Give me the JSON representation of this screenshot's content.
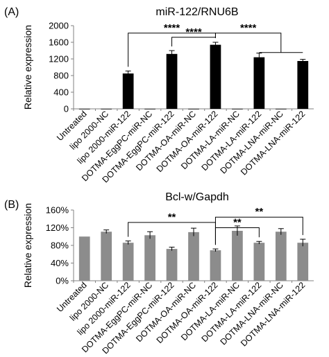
{
  "chart_data": [
    {
      "type": "bar",
      "panel_label": "(A)",
      "title": "miR-122/RNU6B",
      "ylabel": "Relative expression",
      "xlabel": "",
      "ylim": [
        0,
        2000
      ],
      "yticks": [
        "0",
        "400",
        "800",
        "1200",
        "1600",
        "2000"
      ],
      "ytick_values": [
        0,
        400,
        800,
        1200,
        1600,
        2000
      ],
      "grid": false,
      "bar_color": "#000000",
      "categories": [
        "Untreated",
        "lipo 2000-NC",
        "lipo 2000-miR-122",
        "DOTMA-EggPC-miR-NC",
        "DOTMA-EggPC-miR-122",
        "DOTMA-OA-miR-NC",
        "DOTMA-OA-miR-122",
        "DOTMA-LA-miR-NC",
        "DOTMA-LA-miR-122",
        "DOTMA-LNA-miR-NC",
        "DOTMA-LNA-miR-122"
      ],
      "values": [
        1,
        1,
        850,
        1,
        1320,
        1,
        1540,
        1,
        1240,
        1,
        1150
      ],
      "errors": [
        0,
        0,
        60,
        0,
        80,
        0,
        60,
        0,
        100,
        0,
        40
      ],
      "annotations": [
        {
          "text": "****",
          "from": 2,
          "to": 6,
          "level": 1820
        },
        {
          "text": "****",
          "from": 4,
          "to": 6,
          "level": 1720
        },
        {
          "text": "****",
          "from": 6,
          "to": [
            8,
            10
          ],
          "level": 1820
        }
      ]
    },
    {
      "type": "bar",
      "panel_label": "(B)",
      "title": "Bcl-w/Gapdh",
      "ylabel": "Relative expression",
      "xlabel": "",
      "ylim": [
        0,
        1.6
      ],
      "yticks": [
        "0%",
        "40%",
        "80%",
        "120%",
        "160%"
      ],
      "ytick_values": [
        0,
        0.4,
        0.8,
        1.2,
        1.6
      ],
      "grid": false,
      "bar_color": "#8c8c8c",
      "categories": [
        "Untreated",
        "lipo 2000-NC",
        "lipo 2000-miR-122",
        "DOTMA-EggPC-miR-NC",
        "DOTMA-EggPC-miR-122",
        "DOTMA-OA-miR-NC",
        "DOTMA-OA-miR-122",
        "DOTMA-LA-miR-NC",
        "DOTMA-LA-miR-122",
        "DOTMA-LNA-miR-NC",
        "DOTMA-LNA-miR-122"
      ],
      "values": [
        1.0,
        1.11,
        0.86,
        1.03,
        0.72,
        1.1,
        0.69,
        1.13,
        0.86,
        1.11,
        0.86
      ],
      "errors": [
        0.0,
        0.04,
        0.04,
        0.08,
        0.04,
        0.09,
        0.03,
        0.11,
        0.03,
        0.07,
        0.08
      ],
      "annotations": [
        {
          "text": "**",
          "from": 2,
          "to": 6,
          "level": 1.32
        },
        {
          "text": "**",
          "from": 6,
          "to": 10,
          "level": 1.44
        },
        {
          "text": "**",
          "from": 6,
          "to": 8,
          "level": 1.2
        }
      ]
    }
  ]
}
